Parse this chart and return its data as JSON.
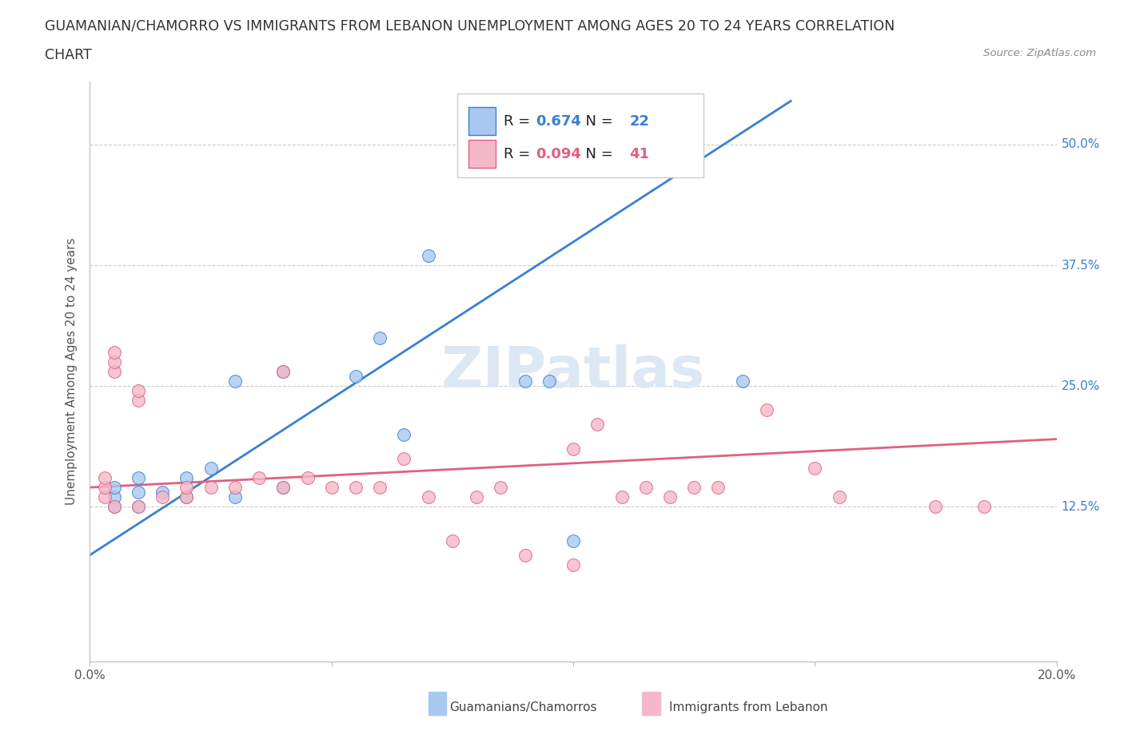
{
  "title_line1": "GUAMANIAN/CHAMORRO VS IMMIGRANTS FROM LEBANON UNEMPLOYMENT AMONG AGES 20 TO 24 YEARS CORRELATION",
  "title_line2": "CHART",
  "source": "Source: ZipAtlas.com",
  "ylabel": "Unemployment Among Ages 20 to 24 years",
  "xlim": [
    0.0,
    0.2
  ],
  "ylim": [
    -0.035,
    0.565
  ],
  "blue_R": 0.674,
  "blue_N": 22,
  "pink_R": 0.094,
  "pink_N": 41,
  "blue_color": "#a8c8f0",
  "pink_color": "#f5b8c8",
  "blue_line_color": "#3a7fd4",
  "pink_line_color": "#e06080",
  "blue_scatter_x": [
    0.005,
    0.005,
    0.005,
    0.01,
    0.01,
    0.01,
    0.015,
    0.02,
    0.02,
    0.025,
    0.03,
    0.03,
    0.04,
    0.04,
    0.055,
    0.06,
    0.065,
    0.07,
    0.09,
    0.095,
    0.1,
    0.135
  ],
  "blue_scatter_y": [
    0.125,
    0.135,
    0.145,
    0.125,
    0.14,
    0.155,
    0.14,
    0.135,
    0.155,
    0.165,
    0.135,
    0.255,
    0.145,
    0.265,
    0.26,
    0.3,
    0.2,
    0.385,
    0.255,
    0.255,
    0.09,
    0.255
  ],
  "pink_scatter_x": [
    0.003,
    0.003,
    0.003,
    0.005,
    0.005,
    0.005,
    0.005,
    0.01,
    0.01,
    0.01,
    0.015,
    0.02,
    0.02,
    0.025,
    0.03,
    0.035,
    0.04,
    0.04,
    0.045,
    0.05,
    0.055,
    0.06,
    0.065,
    0.07,
    0.075,
    0.08,
    0.085,
    0.09,
    0.1,
    0.105,
    0.11,
    0.115,
    0.12,
    0.125,
    0.13,
    0.14,
    0.15,
    0.155,
    0.175,
    0.185,
    0.1
  ],
  "pink_scatter_y": [
    0.135,
    0.145,
    0.155,
    0.265,
    0.275,
    0.285,
    0.125,
    0.125,
    0.235,
    0.245,
    0.135,
    0.135,
    0.145,
    0.145,
    0.145,
    0.155,
    0.145,
    0.265,
    0.155,
    0.145,
    0.145,
    0.145,
    0.175,
    0.135,
    0.09,
    0.135,
    0.145,
    0.075,
    0.185,
    0.21,
    0.135,
    0.145,
    0.135,
    0.145,
    0.145,
    0.225,
    0.165,
    0.135,
    0.125,
    0.125,
    0.065
  ],
  "blue_line_x0": 0.0,
  "blue_line_y0": 0.075,
  "blue_line_x1": 0.145,
  "blue_line_y1": 0.545,
  "pink_line_x0": 0.0,
  "pink_line_y0": 0.145,
  "pink_line_x1": 0.2,
  "pink_line_y1": 0.195,
  "legend_label_blue": "Guamanians/Chamorros",
  "legend_label_pink": "Immigrants from Lebanon",
  "grid_color": "#cccccc",
  "background_color": "#ffffff",
  "title_color": "#333333",
  "axis_label_color": "#555555",
  "right_tick_color": "#3a7fd4",
  "watermark_color": "#dde8f5"
}
